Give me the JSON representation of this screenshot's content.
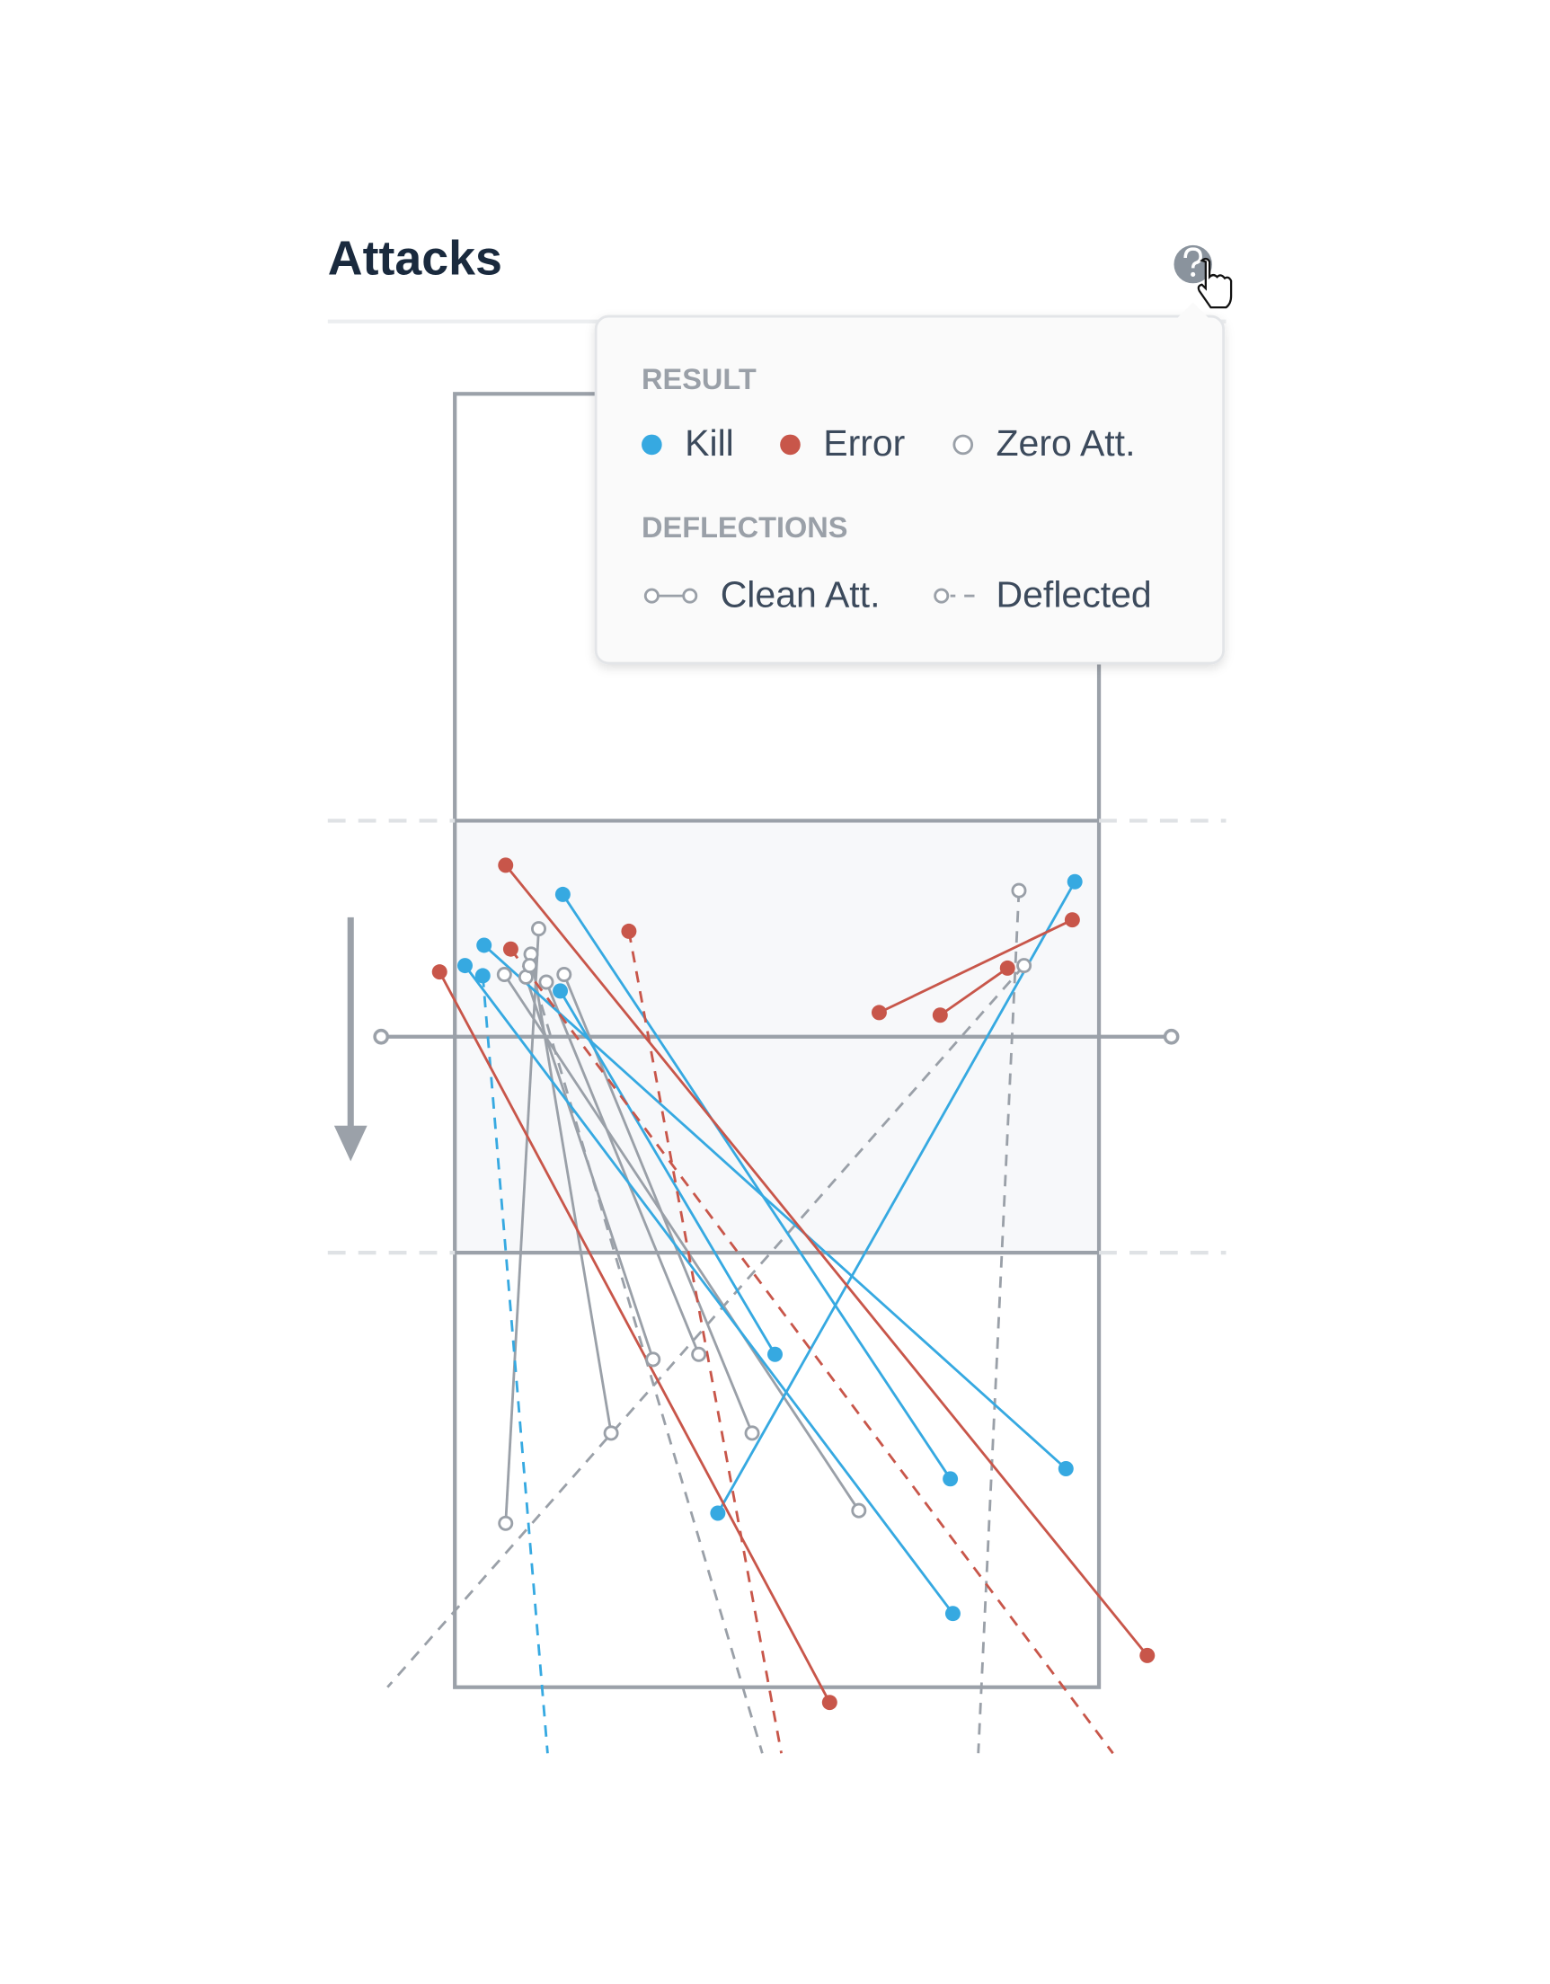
{
  "header": {
    "title": "Attacks"
  },
  "legend": {
    "result": {
      "heading": "RESULT",
      "items": [
        "Kill",
        "Error",
        "Zero Att."
      ]
    },
    "deflections": {
      "heading": "DEFLECTIONS",
      "items": [
        "Clean Att.",
        "Deflected"
      ]
    }
  }
}
